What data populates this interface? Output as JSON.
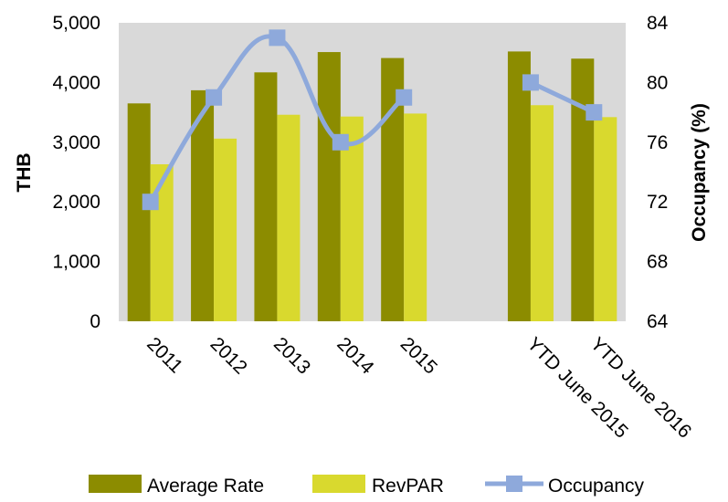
{
  "chart_data": {
    "type": "bar",
    "categories": [
      "2011",
      "2012",
      "2013",
      "2014",
      "2015",
      "",
      "YTD June 2015",
      "YTD June 2016"
    ],
    "series": [
      {
        "name": "Average Rate",
        "kind": "bar",
        "axis": "left",
        "color": "#8c8c00",
        "values": [
          3650,
          3870,
          4170,
          4510,
          4410,
          null,
          4520,
          4400
        ]
      },
      {
        "name": "RevPAR",
        "kind": "bar",
        "axis": "left",
        "color": "#d9d92e",
        "values": [
          2630,
          3060,
          3460,
          3430,
          3480,
          null,
          3620,
          3420
        ]
      },
      {
        "name": "Occupancy",
        "kind": "line",
        "axis": "right",
        "color": "#8ea9db",
        "values": [
          72,
          79,
          83,
          76,
          79,
          null,
          80,
          78
        ]
      }
    ],
    "ylabel": "THB",
    "y2label": "Occupancy (%)",
    "ylim": [
      0,
      5000
    ],
    "yticks": [
      "0",
      "1,000",
      "2,000",
      "3,000",
      "4,000",
      "5,000"
    ],
    "y2lim": [
      64,
      84
    ],
    "y2ticks": [
      "64",
      "68",
      "72",
      "76",
      "80",
      "84"
    ],
    "plot_background": "#d9d9d9",
    "grid": false,
    "legend_position": "bottom"
  }
}
